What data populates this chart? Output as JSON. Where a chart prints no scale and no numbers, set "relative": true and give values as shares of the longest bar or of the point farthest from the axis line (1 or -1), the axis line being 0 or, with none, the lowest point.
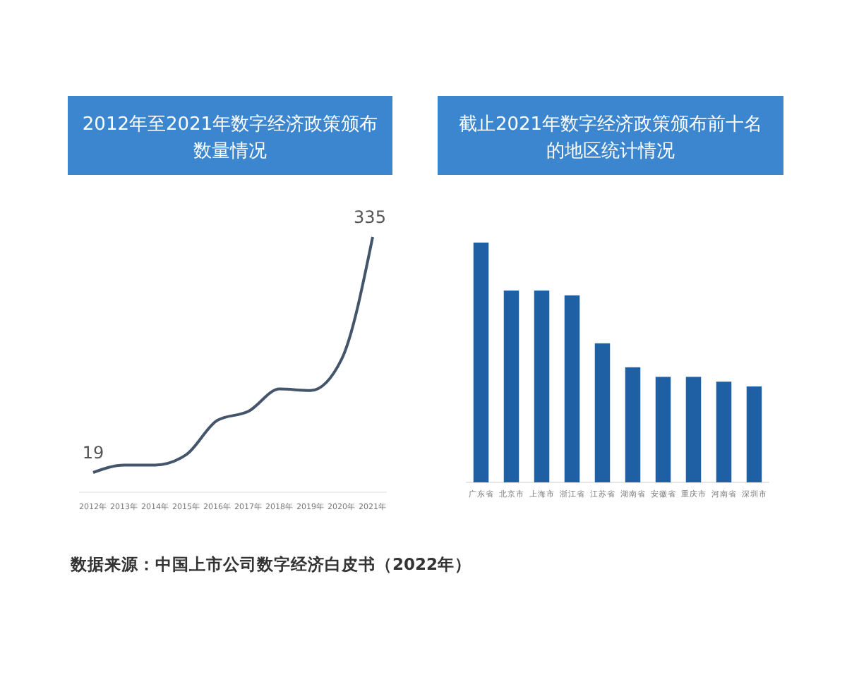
{
  "chart_data": [
    {
      "type": "line",
      "title": "2012年至2021年数字经济政策颁布数量情况",
      "categories": [
        "2012年",
        "2013年",
        "2014年",
        "2015年",
        "2016年",
        "2017年",
        "2018年",
        "2019年",
        "2020年",
        "2021年"
      ],
      "series": [
        {
          "color": "#44546a",
          "values": [
            19,
            29,
            29,
            43,
            89,
            101,
            131,
            129,
            171,
            335
          ],
          "value_labels": [
            "19",
            null,
            null,
            null,
            null,
            null,
            null,
            null,
            null,
            "335"
          ]
        }
      ],
      "annotations": [
        "数据来源：中国上市公司数字经济白皮书（2022年）"
      ]
    },
    {
      "type": "bar",
      "title": "截止2021年数字经济政策颁布前十名的地区统计情况",
      "categories": [
        "广东省",
        "北京市",
        "上海市",
        "浙江省",
        "江苏省",
        "湖南省",
        "安徽省",
        "重庆市",
        "河南省",
        "深圳市"
      ],
      "relative": true,
      "series": [
        {
          "color": "#1f5fa3",
          "values": [
            1,
            0.8,
            0.8,
            0.78,
            0.58,
            0.48,
            0.44,
            0.44,
            0.42,
            0.4
          ]
        }
      ]
    }
  ]
}
